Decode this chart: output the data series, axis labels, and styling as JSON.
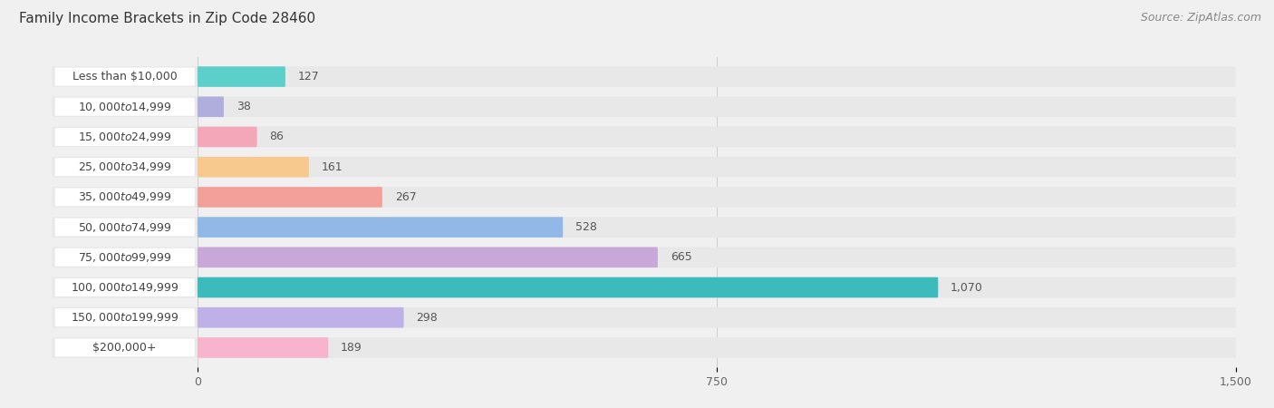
{
  "title": "Family Income Brackets in Zip Code 28460",
  "source": "Source: ZipAtlas.com",
  "categories": [
    "Less than $10,000",
    "$10,000 to $14,999",
    "$15,000 to $24,999",
    "$25,000 to $34,999",
    "$35,000 to $49,999",
    "$50,000 to $74,999",
    "$75,000 to $99,999",
    "$100,000 to $149,999",
    "$150,000 to $199,999",
    "$200,000+"
  ],
  "values": [
    127,
    38,
    86,
    161,
    267,
    528,
    665,
    1070,
    298,
    189
  ],
  "bar_colors": [
    "#5DCFCB",
    "#B0AEDD",
    "#F4A7B9",
    "#F8C98E",
    "#F4A09A",
    "#92B8E8",
    "#C8A8D8",
    "#3DBABC",
    "#C0B0E8",
    "#F8B4CC"
  ],
  "page_bg_color": "#f0f0f0",
  "bar_bg_color": "#e8e8e8",
  "label_bg_color": "#ffffff",
  "data_max": 1500,
  "xticks": [
    0,
    750,
    1500
  ],
  "title_fontsize": 11,
  "label_fontsize": 9,
  "value_fontsize": 9,
  "source_fontsize": 9
}
